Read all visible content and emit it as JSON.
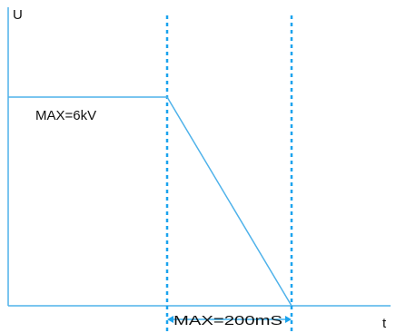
{
  "chart_data": {
    "type": "line",
    "title": "",
    "ylabel": "U",
    "xlabel": "t",
    "series": [
      {
        "points": [
          {
            "x": 0,
            "y": 6
          },
          {
            "x": 1,
            "y": 6
          },
          {
            "x": 2,
            "y": 0
          }
        ]
      }
    ],
    "annotations": {
      "voltage": "MAX=6kV",
      "duration": "MAX=200mS"
    },
    "grid": false,
    "colors": {
      "curve": "#4fb2ea",
      "axes": "#4fb2ea",
      "markers": "#1aa3ee",
      "text": "#111111"
    }
  }
}
